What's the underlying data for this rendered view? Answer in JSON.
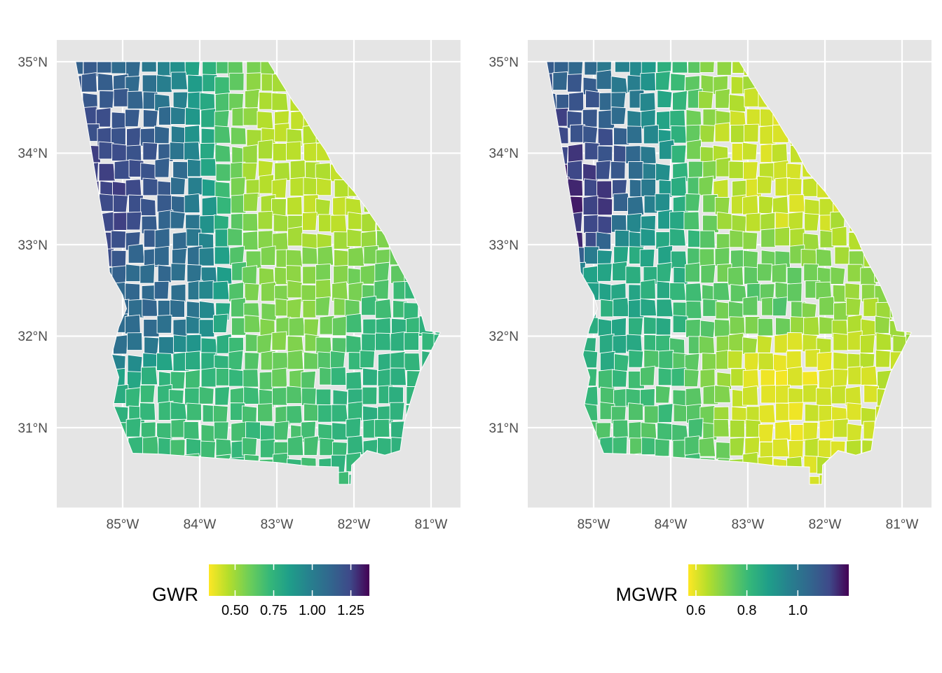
{
  "panels": [
    {
      "id": "gwr",
      "legend_title": "GWR",
      "colorbar_ticks": [
        "0.50",
        "0.75",
        "1.00",
        "1.25"
      ],
      "colorbar_values": [
        0.5,
        0.75,
        1.0,
        1.25
      ],
      "colorbar_range": [
        0.33,
        1.37
      ],
      "regional_values": {
        "northwest": 1.25,
        "west_central": 1.1,
        "southwest": 0.7,
        "northeast": 0.45,
        "east_central": 0.55,
        "southeast": 0.75
      }
    },
    {
      "id": "mgwr",
      "legend_title": "MGWR",
      "colorbar_ticks": [
        "0.6",
        "0.8",
        "1.0"
      ],
      "colorbar_values": [
        0.6,
        0.8,
        1.0
      ],
      "colorbar_range": [
        0.57,
        1.2
      ],
      "regional_values": {
        "northwest": 1.15,
        "west_central": 0.85,
        "southwest": 0.78,
        "northeast": 0.62,
        "east_central": 0.75,
        "south_central": 0.6
      }
    }
  ],
  "latitude_labels": [
    "35°N",
    "34°N",
    "33°N",
    "32°N",
    "31°N"
  ],
  "latitude_values": [
    35,
    34,
    33,
    32,
    31
  ],
  "longitude_labels": [
    "85°W",
    "84°W",
    "83°W",
    "82°W",
    "81°W"
  ],
  "longitude_values": [
    -85,
    -84,
    -83,
    -82,
    -81
  ],
  "colors": {
    "panel_background": "#e5e5e5",
    "grid_line": "#ffffff",
    "county_border": "#ffffff",
    "viridis_low": "#fde725",
    "viridis_mid": "#21918c",
    "viridis_high": "#440154"
  },
  "colormap": "viridis (reversed: low = yellow, high = dark purple)"
}
